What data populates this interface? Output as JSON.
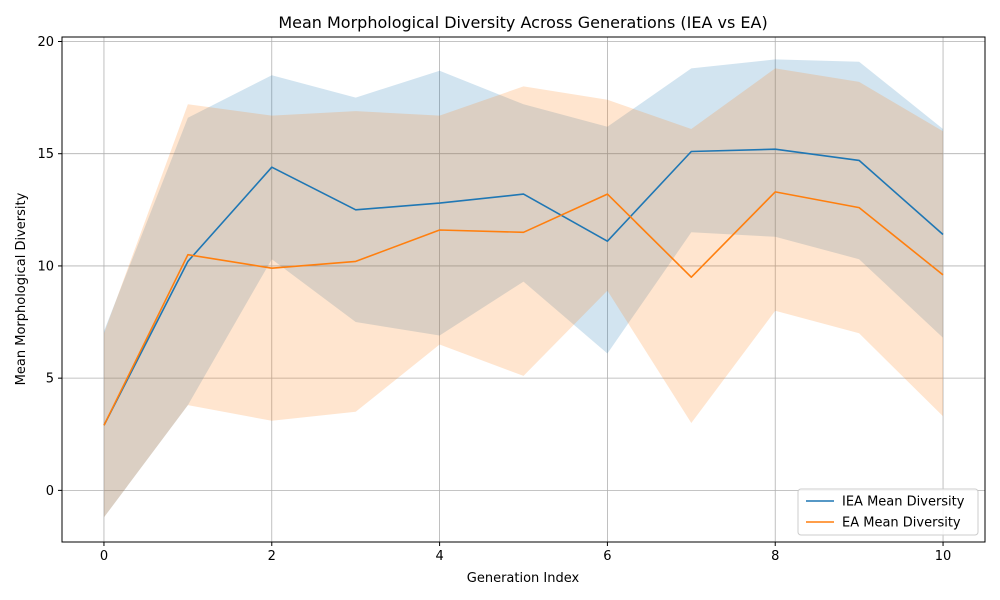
{
  "chart_data": {
    "type": "line",
    "title": "Mean Morphological Diversity Across Generations (IEA vs EA)",
    "xlabel": "Generation Index",
    "ylabel": "Mean Morphological Diversity",
    "xlim": [
      -0.5,
      10.5
    ],
    "ylim": [
      -2.3,
      20.2
    ],
    "xticks": [
      0,
      2,
      4,
      6,
      8,
      10
    ],
    "yticks": [
      0,
      5,
      10,
      15,
      20
    ],
    "grid": true,
    "legend_position": "bottom-right",
    "x": [
      0,
      1,
      2,
      3,
      4,
      5,
      6,
      7,
      8,
      9,
      10
    ],
    "series": [
      {
        "name": "IEA Mean Diversity",
        "color": "#1f77b4",
        "band_color": "#1f77b4",
        "values": [
          2.9,
          10.2,
          14.4,
          12.5,
          12.8,
          13.2,
          11.1,
          15.1,
          15.2,
          14.7,
          11.4
        ],
        "upper": [
          7.1,
          16.6,
          18.5,
          17.5,
          18.7,
          17.2,
          16.2,
          18.8,
          19.2,
          19.1,
          16.1
        ],
        "lower": [
          -1.2,
          3.8,
          10.3,
          7.5,
          6.9,
          9.3,
          6.1,
          11.5,
          11.3,
          10.3,
          6.8
        ]
      },
      {
        "name": "EA Mean Diversity",
        "color": "#ff7f0e",
        "band_color": "#ff7f0e",
        "values": [
          2.9,
          10.5,
          9.9,
          10.2,
          11.6,
          11.5,
          13.2,
          9.5,
          13.3,
          12.6,
          9.6
        ],
        "upper": [
          7.0,
          17.2,
          16.7,
          16.9,
          16.7,
          18.0,
          17.4,
          16.1,
          18.8,
          18.2,
          16.0
        ],
        "lower": [
          -1.2,
          3.8,
          3.1,
          3.5,
          6.5,
          5.1,
          8.9,
          3.0,
          8.0,
          7.0,
          3.3
        ]
      }
    ]
  }
}
